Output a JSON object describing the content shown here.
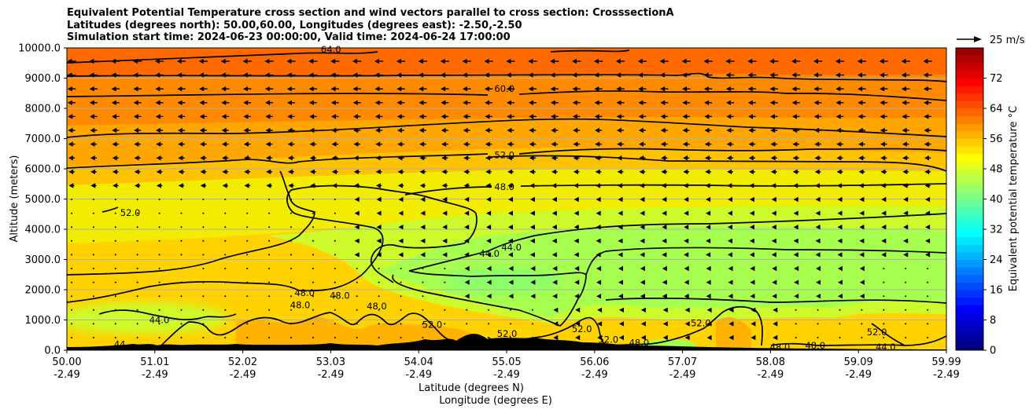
{
  "title_lines": [
    "Equivalent Potential Temperature cross section and wind vectors parallel to cross section: CrosssectionA",
    "Latitudes (degrees north): 50.00,60.00, Longitudes (degrees east): -2.50,-2.50",
    "Simulation start time: 2024-06-23 00:00:00, Valid time: 2024-06-24 17:00:00"
  ],
  "chart_data": {
    "type": "heatmap",
    "title": "Equivalent Potential Temperature cross section and wind vectors parallel to cross section: CrosssectionA",
    "xlabel_line1": "Latitude (degrees N)",
    "xlabel_line2": "Longitude (degrees E)",
    "ylabel": "Altitude (meters)",
    "ylim": [
      0,
      10000
    ],
    "xlim": [
      50.0,
      59.99
    ],
    "y_ticks": [
      "0.0",
      "1000.0",
      "2000.0",
      "3000.0",
      "4000.0",
      "5000.0",
      "6000.0",
      "7000.0",
      "8000.0",
      "9000.0",
      "10000.0"
    ],
    "x_ticks_lat": [
      "50.00",
      "51.01",
      "52.02",
      "53.03",
      "54.04",
      "55.05",
      "56.06",
      "57.07",
      "58.08",
      "59.09",
      "59.99"
    ],
    "x_ticks_lon": [
      "-2.49",
      "-2.49",
      "-2.49",
      "-2.49",
      "-2.49",
      "-2.49",
      "-2.49",
      "-2.49",
      "-2.49",
      "-2.49",
      "-2.49"
    ],
    "grid": "horizontal",
    "colorbar": {
      "label": "Equivalent potential temperature °C",
      "range": [
        0,
        80
      ],
      "ticks": [
        "0",
        "8",
        "16",
        "24",
        "32",
        "40",
        "48",
        "56",
        "64",
        "72"
      ]
    },
    "quiver_key": "25 m/s",
    "contour_levels": [
      40,
      44,
      48,
      52,
      56,
      60,
      64
    ],
    "contour_labels": [
      {
        "text": "64.0",
        "lat": 53.0,
        "alt": 9950
      },
      {
        "text": "60.0",
        "lat": 54.97,
        "alt": 8650
      },
      {
        "text": "52.0",
        "lat": 54.97,
        "alt": 6450
      },
      {
        "text": "48.0",
        "lat": 54.97,
        "alt": 5400
      },
      {
        "text": "44.0",
        "lat": 55.05,
        "alt": 3400
      },
      {
        "text": "44.0",
        "lat": 54.8,
        "alt": 3200
      },
      {
        "text": "52.0",
        "lat": 50.72,
        "alt": 4550
      },
      {
        "text": "48.0",
        "lat": 52.7,
        "alt": 1900
      },
      {
        "text": "48.0",
        "lat": 52.65,
        "alt": 1500
      },
      {
        "text": "48.0",
        "lat": 53.1,
        "alt": 1800
      },
      {
        "text": "48.0",
        "lat": 53.52,
        "alt": 1450
      },
      {
        "text": "44.0",
        "lat": 51.05,
        "alt": 1000
      },
      {
        "text": "52.0",
        "lat": 54.15,
        "alt": 850
      },
      {
        "text": "52.0",
        "lat": 55.0,
        "alt": 550
      },
      {
        "text": "52.0",
        "lat": 55.85,
        "alt": 700
      },
      {
        "text": "52.0",
        "lat": 56.15,
        "alt": 350
      },
      {
        "text": "48.0",
        "lat": 56.5,
        "alt": 250
      },
      {
        "text": "52.0",
        "lat": 57.2,
        "alt": 900
      },
      {
        "text": "48.0",
        "lat": 58.1,
        "alt": 100
      },
      {
        "text": "48.0",
        "lat": 58.5,
        "alt": 150
      },
      {
        "text": "52.0",
        "lat": 59.2,
        "alt": 600
      },
      {
        "text": "44.0",
        "lat": 59.3,
        "alt": 100
      },
      {
        "text": "44",
        "lat": 50.6,
        "alt": 200
      }
    ],
    "approximate_fields": [
      {
        "value": 66,
        "alt_range": [
          9000,
          10000
        ]
      },
      {
        "value": 62,
        "alt_range": [
          8000,
          9000
        ]
      },
      {
        "value": 58,
        "alt_range": [
          6000,
          8000
        ]
      },
      {
        "value": 52,
        "alt_range": [
          4500,
          6000
        ]
      },
      {
        "value": 48,
        "alt_range": [
          2500,
          4500
        ]
      },
      {
        "value": 44,
        "alt_range": [
          1500,
          3000
        ]
      },
      {
        "value": 52,
        "alt_range": [
          0,
          1500
        ]
      }
    ]
  }
}
